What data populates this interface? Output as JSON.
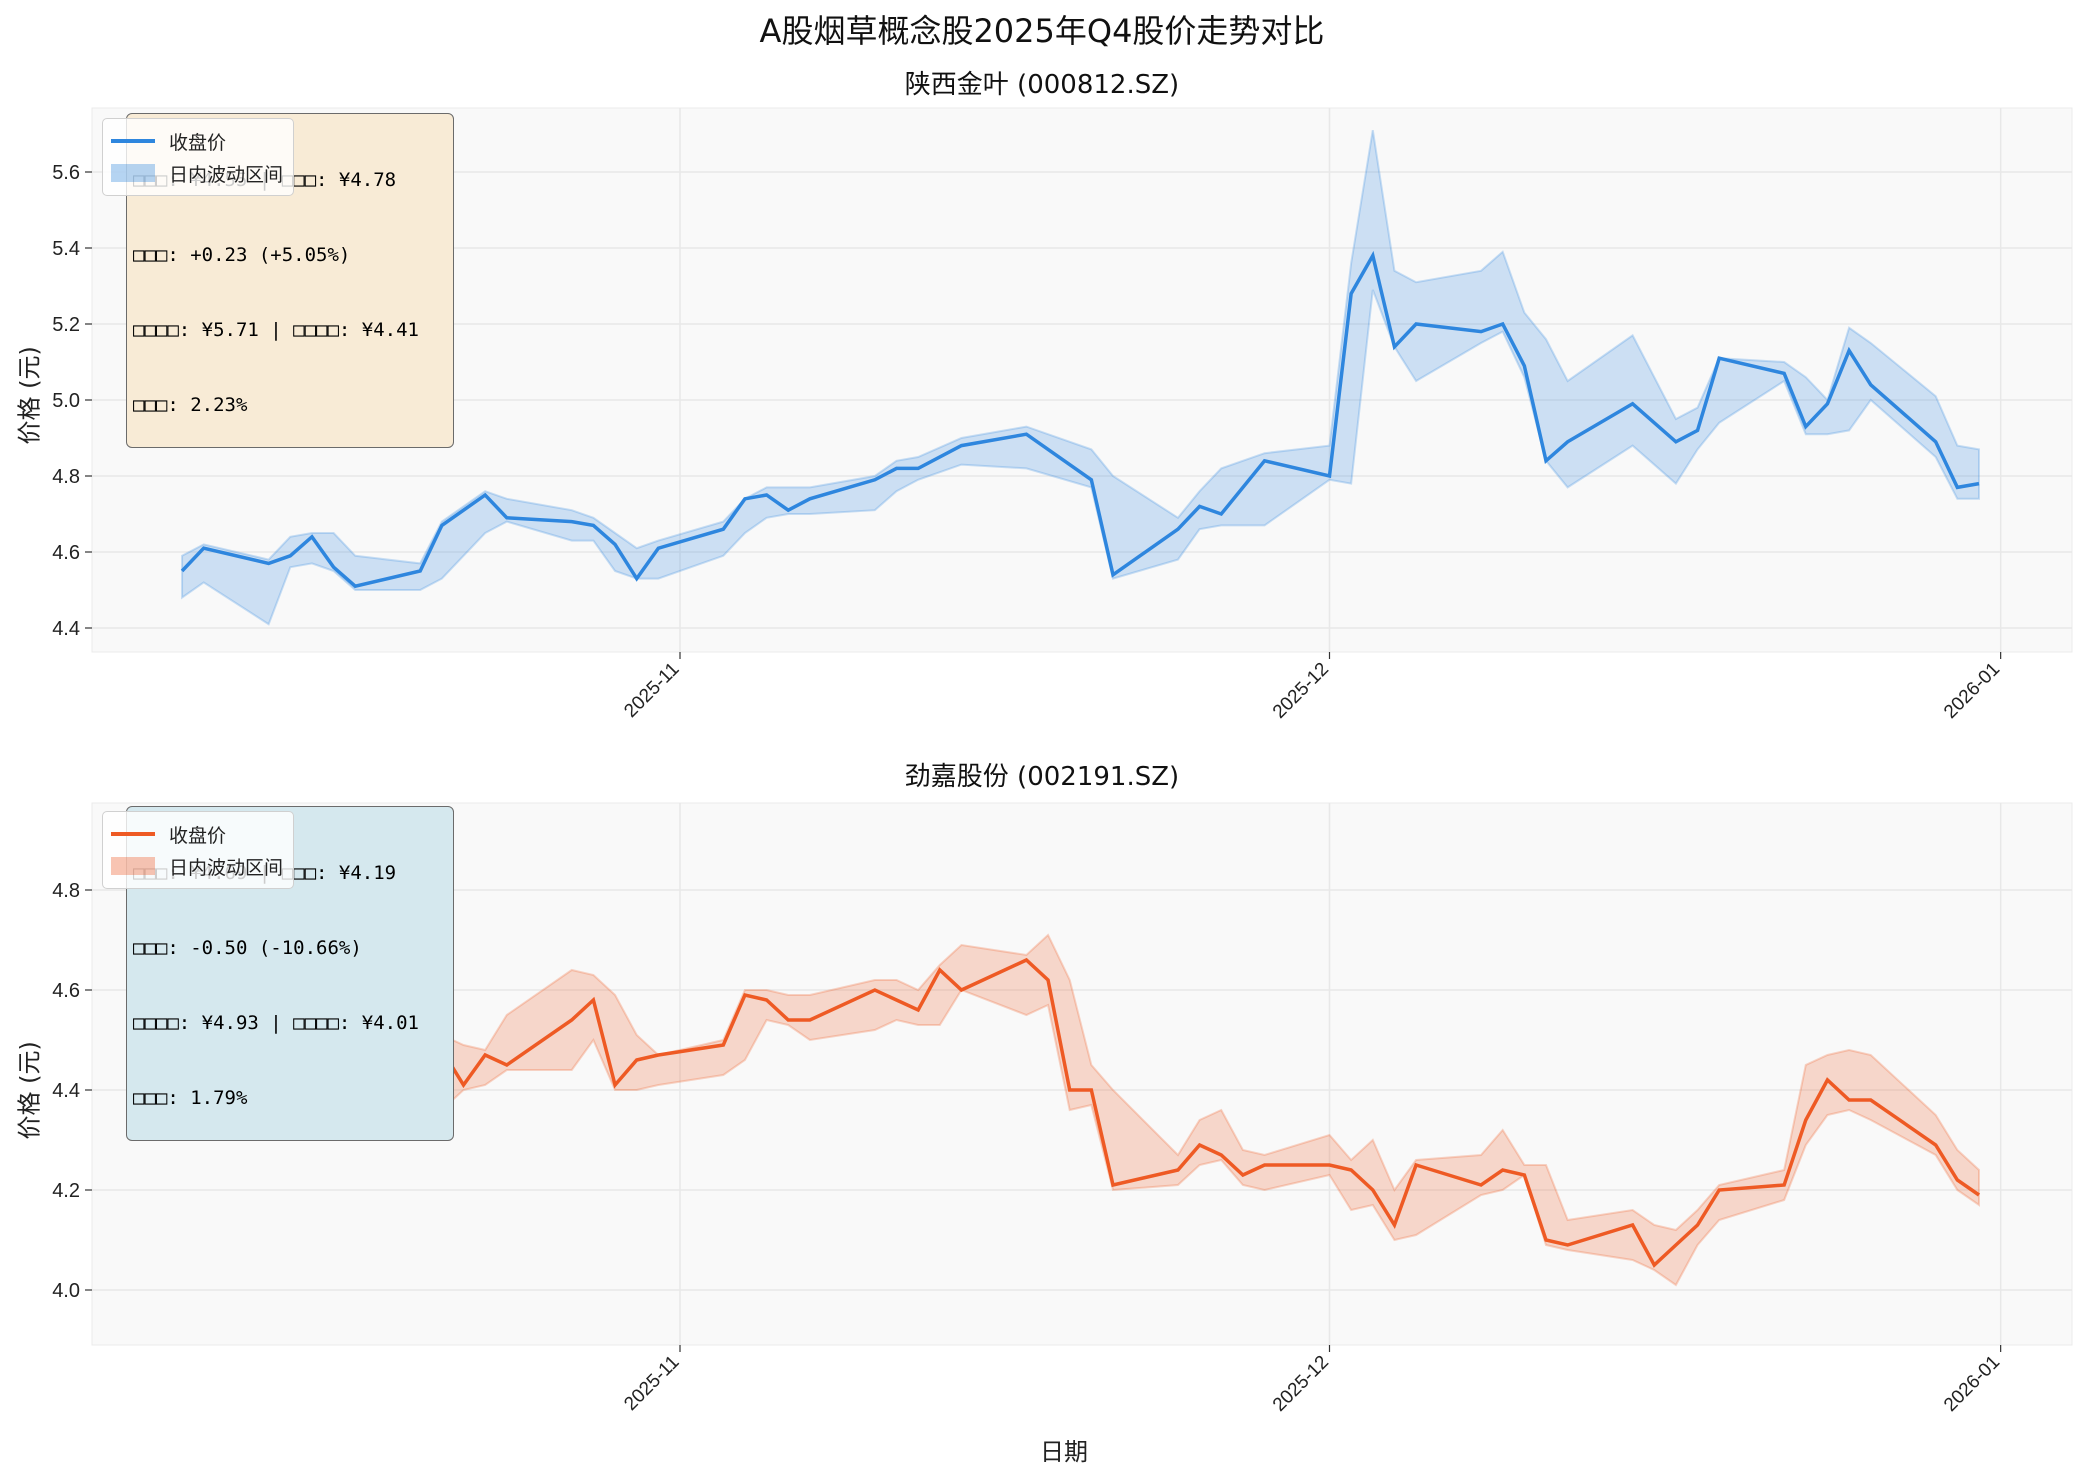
{
  "title": "A股烟草概念股2025年Q4股价走势对比",
  "xlabel": "日期",
  "ylabel": "价格 (元)",
  "legend": {
    "close_label": "收盘价",
    "range_label": "日内波动区间"
  },
  "panels": [
    {
      "title": "陕西金叶 (000812.SZ)",
      "color": "#2E86DE",
      "box_color": "#F8EBD6",
      "info_lines": [
        "□□□: ¥4.55 | □□□: ¥4.78",
        "□□□: +0.23 (+5.05%)",
        "□□□□: ¥5.71 | □□□□: ¥4.41",
        "□□□: 2.23%"
      ]
    },
    {
      "title": "劲嘉股份 (002191.SZ)",
      "color": "#EE5A24",
      "box_color": "#D5E8EE",
      "info_lines": [
        "□□□: ¥4.69 | □□□: ¥4.19",
        "□□□: -0.50 (-10.66%)",
        "□□□□: ¥4.93 | □□□□: ¥4.01",
        "□□□: 1.79%"
      ]
    }
  ],
  "chart_data": [
    {
      "type": "line",
      "title": "陕西金叶 (000812.SZ)",
      "xlabel": "",
      "ylabel": "价格 (元)",
      "ylim": [
        4.35,
        5.76
      ],
      "yticks": [
        4.4,
        4.6,
        4.8,
        5.0,
        5.2,
        5.4,
        5.6
      ],
      "xticks": [
        "2025-11",
        "2025-12",
        "2026-01"
      ],
      "grid": true,
      "legend_position": "upper left",
      "x": [
        "2025-10-09",
        "2025-10-10",
        "2025-10-13",
        "2025-10-14",
        "2025-10-15",
        "2025-10-16",
        "2025-10-17",
        "2025-10-20",
        "2025-10-21",
        "2025-10-23",
        "2025-10-24",
        "2025-10-27",
        "2025-10-28",
        "2025-10-29",
        "2025-10-30",
        "2025-10-31",
        "2025-11-03",
        "2025-11-04",
        "2025-11-05",
        "2025-11-06",
        "2025-11-07",
        "2025-11-10",
        "2025-11-11",
        "2025-11-12",
        "2025-11-14",
        "2025-11-17",
        "2025-11-20",
        "2025-11-21",
        "2025-11-24",
        "2025-11-25",
        "2025-11-26",
        "2025-11-28",
        "2025-12-01",
        "2025-12-02",
        "2025-12-03",
        "2025-12-04",
        "2025-12-05",
        "2025-12-08",
        "2025-12-09",
        "2025-12-10",
        "2025-12-11",
        "2025-12-12",
        "2025-12-15",
        "2025-12-17",
        "2025-12-18",
        "2025-12-19",
        "2025-12-22",
        "2025-12-23",
        "2025-12-24",
        "2025-12-25",
        "2025-12-26",
        "2025-12-29",
        "2025-12-30",
        "2025-12-31"
      ],
      "series": [
        {
          "name": "收盘价",
          "values": [
            4.55,
            4.61,
            4.57,
            4.59,
            4.64,
            4.56,
            4.51,
            4.55,
            4.67,
            4.75,
            4.69,
            4.68,
            4.67,
            4.62,
            4.53,
            4.61,
            4.66,
            4.74,
            4.75,
            4.71,
            4.74,
            4.79,
            4.82,
            4.82,
            4.88,
            4.91,
            4.79,
            4.54,
            4.66,
            4.72,
            4.7,
            4.84,
            4.8,
            5.28,
            5.38,
            5.14,
            5.2,
            5.18,
            5.2,
            5.09,
            4.84,
            4.89,
            4.99,
            4.89,
            4.92,
            5.11,
            5.07,
            4.93,
            4.99,
            5.13,
            5.04,
            4.89,
            4.77,
            4.78
          ]
        },
        {
          "name": "日内最高",
          "values": [
            4.59,
            4.62,
            4.58,
            4.64,
            4.65,
            4.65,
            4.59,
            4.57,
            4.68,
            4.76,
            4.74,
            4.71,
            4.69,
            4.65,
            4.61,
            4.63,
            4.68,
            4.74,
            4.77,
            4.77,
            4.77,
            4.8,
            4.84,
            4.85,
            4.9,
            4.93,
            4.87,
            4.8,
            4.69,
            4.76,
            4.82,
            4.86,
            4.88,
            5.36,
            5.71,
            5.34,
            5.31,
            5.34,
            5.39,
            5.23,
            5.16,
            5.05,
            5.17,
            4.95,
            4.98,
            5.11,
            5.1,
            5.06,
            5.0,
            5.19,
            5.15,
            5.01,
            4.88,
            4.87
          ]
        },
        {
          "name": "日内最低",
          "values": [
            4.48,
            4.52,
            4.41,
            4.56,
            4.57,
            4.55,
            4.5,
            4.5,
            4.53,
            4.65,
            4.68,
            4.63,
            4.63,
            4.55,
            4.53,
            4.53,
            4.59,
            4.65,
            4.69,
            4.7,
            4.7,
            4.71,
            4.76,
            4.79,
            4.83,
            4.82,
            4.77,
            4.53,
            4.58,
            4.66,
            4.67,
            4.67,
            4.79,
            4.78,
            5.29,
            5.14,
            5.05,
            5.15,
            5.18,
            5.06,
            4.84,
            4.77,
            4.88,
            4.78,
            4.87,
            4.94,
            5.05,
            4.91,
            4.91,
            4.92,
            5.0,
            4.85,
            4.74,
            4.74
          ]
        }
      ]
    },
    {
      "type": "line",
      "title": "劲嘉股份 (002191.SZ)",
      "xlabel": "日期",
      "ylabel": "价格 (元)",
      "ylim": [
        3.97,
        4.98
      ],
      "yticks": [
        4.0,
        4.2,
        4.4,
        4.6,
        4.8
      ],
      "xticks": [
        "2025-11",
        "2025-12",
        "2026-01"
      ],
      "grid": true,
      "legend_position": "upper left",
      "x": [
        "2025-10-09",
        "2025-10-10",
        "2025-10-13",
        "2025-10-14",
        "2025-10-15",
        "2025-10-16",
        "2025-10-17",
        "2025-10-20",
        "2025-10-21",
        "2025-10-22",
        "2025-10-23",
        "2025-10-24",
        "2025-10-27",
        "2025-10-28",
        "2025-10-29",
        "2025-10-30",
        "2025-10-31",
        "2025-11-03",
        "2025-11-04",
        "2025-11-05",
        "2025-11-06",
        "2025-11-07",
        "2025-11-10",
        "2025-11-11",
        "2025-11-12",
        "2025-11-13",
        "2025-11-14",
        "2025-11-17",
        "2025-11-18",
        "2025-11-19",
        "2025-11-20",
        "2025-11-21",
        "2025-11-24",
        "2025-11-25",
        "2025-11-26",
        "2025-11-27",
        "2025-11-28",
        "2025-12-01",
        "2025-12-02",
        "2025-12-03",
        "2025-12-04",
        "2025-12-05",
        "2025-12-08",
        "2025-12-09",
        "2025-12-10",
        "2025-12-11",
        "2025-12-12",
        "2025-12-15",
        "2025-12-16",
        "2025-12-17",
        "2025-12-18",
        "2025-12-19",
        "2025-12-22",
        "2025-12-23",
        "2025-12-24",
        "2025-12-25",
        "2025-12-26",
        "2025-12-29",
        "2025-12-30",
        "2025-12-31"
      ],
      "series": [
        {
          "name": "收盘价",
          "values": [
            4.69,
            4.65,
            4.57,
            4.72,
            4.79,
            4.67,
            4.4,
            4.44,
            4.48,
            4.41,
            4.47,
            4.45,
            4.54,
            4.58,
            4.41,
            4.46,
            4.47,
            4.49,
            4.59,
            4.58,
            4.54,
            4.54,
            4.6,
            4.58,
            4.56,
            4.64,
            4.6,
            4.66,
            4.62,
            4.4,
            4.4,
            4.21,
            4.24,
            4.29,
            4.27,
            4.23,
            4.25,
            4.25,
            4.24,
            4.2,
            4.13,
            4.25,
            4.21,
            4.24,
            4.23,
            4.1,
            4.09,
            4.13,
            4.05,
            4.09,
            4.13,
            4.2,
            4.21,
            4.34,
            4.42,
            4.38,
            4.38,
            4.29,
            4.22,
            4.19
          ]
        },
        {
          "name": "日内最高",
          "values": [
            4.71,
            4.76,
            4.61,
            4.75,
            4.85,
            4.93,
            4.66,
            4.69,
            4.51,
            4.49,
            4.48,
            4.55,
            4.64,
            4.63,
            4.59,
            4.51,
            4.47,
            4.5,
            4.6,
            4.6,
            4.59,
            4.59,
            4.62,
            4.62,
            4.6,
            4.65,
            4.69,
            4.67,
            4.71,
            4.62,
            4.45,
            4.4,
            4.27,
            4.34,
            4.36,
            4.28,
            4.27,
            4.31,
            4.26,
            4.3,
            4.2,
            4.26,
            4.27,
            4.32,
            4.25,
            4.25,
            4.14,
            4.16,
            4.13,
            4.12,
            4.16,
            4.21,
            4.24,
            4.45,
            4.47,
            4.48,
            4.47,
            4.35,
            4.28,
            4.24
          ]
        },
        {
          "name": "日内最低",
          "values": [
            4.53,
            4.64,
            4.45,
            4.55,
            4.69,
            4.63,
            4.39,
            4.41,
            4.36,
            4.4,
            4.41,
            4.44,
            4.44,
            4.5,
            4.4,
            4.4,
            4.41,
            4.43,
            4.46,
            4.54,
            4.53,
            4.5,
            4.52,
            4.54,
            4.53,
            4.53,
            4.6,
            4.55,
            4.57,
            4.36,
            4.37,
            4.2,
            4.21,
            4.25,
            4.26,
            4.21,
            4.2,
            4.23,
            4.16,
            4.17,
            4.1,
            4.11,
            4.19,
            4.2,
            4.23,
            4.09,
            4.08,
            4.06,
            4.04,
            4.01,
            4.09,
            4.14,
            4.18,
            4.29,
            4.35,
            4.36,
            4.34,
            4.27,
            4.2,
            4.17
          ]
        }
      ]
    }
  ]
}
